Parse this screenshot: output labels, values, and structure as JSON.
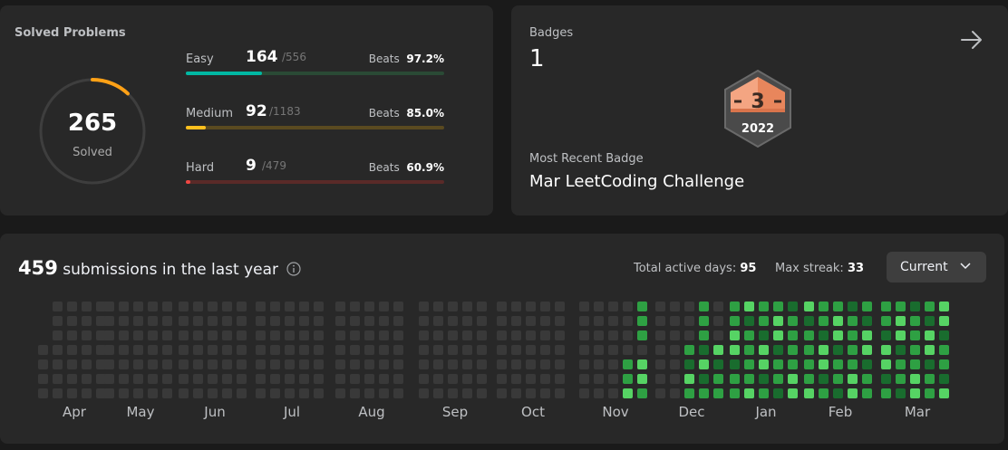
{
  "solved": {
    "title": "Solved Problems",
    "total": "265",
    "total_label": "Solved",
    "difficulties": [
      {
        "name": "Easy",
        "solved": "164",
        "total": "/556",
        "beats_label": "Beats",
        "beats": "97.2%",
        "progress": 0.295,
        "color": "#00b8a3",
        "track": "#2a4a35"
      },
      {
        "name": "Medium",
        "solved": "92",
        "total": "/1183",
        "beats_label": "Beats",
        "beats": "85.0%",
        "progress": 0.078,
        "color": "#ffc01e",
        "track": "#5a4a20"
      },
      {
        "name": "Hard",
        "solved": "9",
        "total": "/479",
        "beats_label": "Beats",
        "beats": "60.9%",
        "progress": 0.019,
        "color": "#ef4743",
        "track": "#5a2a28"
      }
    ]
  },
  "badges": {
    "title": "Badges",
    "count": "1",
    "badge_number": "3",
    "badge_year": "2022",
    "recent_label": "Most Recent Badge",
    "recent_name": "Mar LeetCoding Challenge"
  },
  "submissions": {
    "count": "459",
    "label": "submissions in the last year",
    "active_days_label": "Total active days:",
    "active_days": "95",
    "max_streak_label": "Max streak:",
    "max_streak": "33",
    "range_select": "Current",
    "months": [
      "Apr",
      "May",
      "Jun",
      "Jul",
      "Aug",
      "Sep",
      "Oct",
      "Nov",
      "Dec",
      "Jan",
      "Feb",
      "Mar"
    ]
  },
  "colors": {
    "empty": "#393939",
    "l1": "#196c2e",
    "l2": "#2ea043",
    "l3": "#56d364",
    "accent": "#ffa116"
  }
}
